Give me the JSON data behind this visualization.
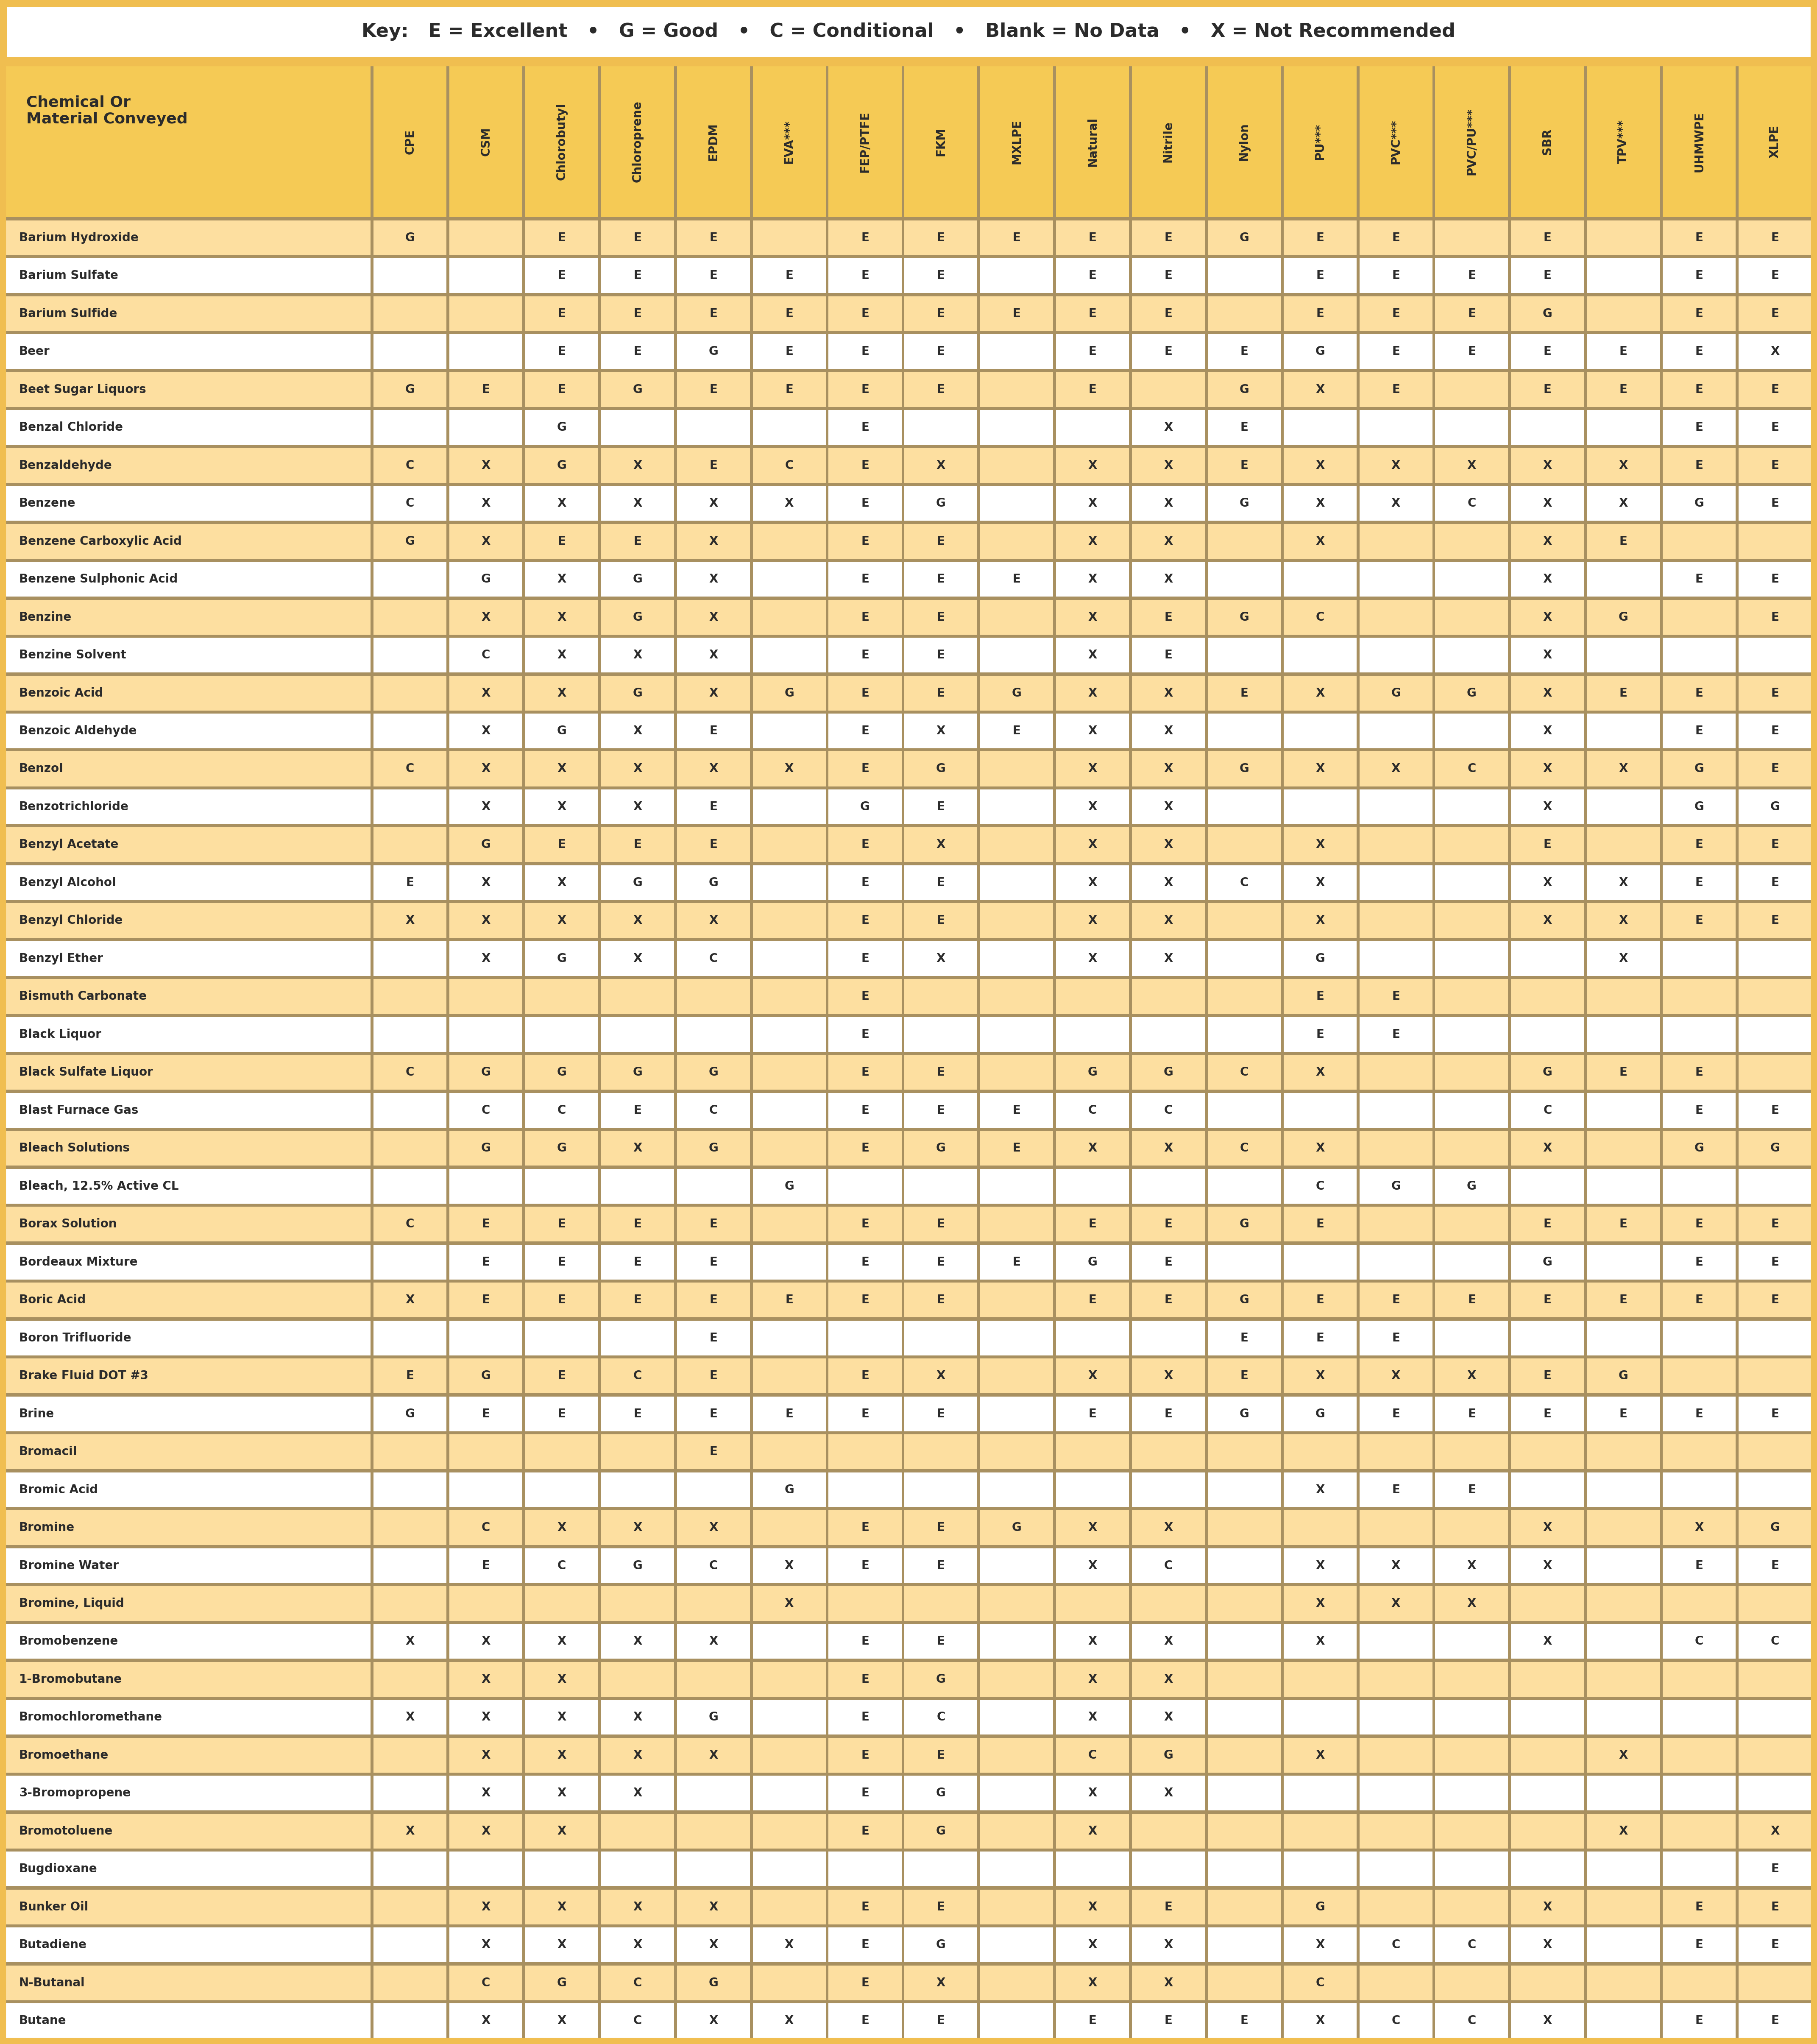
{
  "key_text": "Key:   E = Excellent   •   G = Good   •   C = Conditional   •   Blank = No Data   •   X = Not Recommended",
  "header_col": "Chemical Or\nMaterial Conveyed",
  "columns": [
    "CPE",
    "CSM",
    "Chlorobutyl",
    "Chloroprene",
    "EPDM",
    "EVA***",
    "FEP/PTFE",
    "FKM",
    "MXLPE",
    "Natural",
    "Nitrile",
    "Nylon",
    "PU***",
    "PVC***",
    "PVC/PU***",
    "SBR",
    "TPV***",
    "UHMWPE",
    "XLPE"
  ],
  "rows": [
    [
      "Barium Hydroxide",
      "G",
      "",
      "E",
      "E",
      "E",
      "",
      "E",
      "E",
      "E",
      "E",
      "E",
      "G",
      "E",
      "E",
      "",
      "E",
      "",
      "E",
      "E"
    ],
    [
      "Barium Sulfate",
      "",
      "",
      "E",
      "E",
      "E",
      "E",
      "E",
      "E",
      "",
      "E",
      "E",
      "",
      "E",
      "E",
      "E",
      "E",
      "",
      "E",
      "E"
    ],
    [
      "Barium Sulfide",
      "",
      "",
      "E",
      "E",
      "E",
      "E",
      "E",
      "E",
      "E",
      "E",
      "E",
      "",
      "E",
      "E",
      "E",
      "G",
      "",
      "E",
      "E"
    ],
    [
      "Beer",
      "",
      "",
      "E",
      "E",
      "G",
      "E",
      "E",
      "E",
      "",
      "E",
      "E",
      "E",
      "G",
      "E",
      "E",
      "E",
      "E",
      "E",
      "X"
    ],
    [
      "Beet Sugar Liquors",
      "G",
      "E",
      "E",
      "G",
      "E",
      "E",
      "E",
      "E",
      "",
      "E",
      "",
      "G",
      "X",
      "E",
      "",
      "E",
      "E",
      "E",
      "E"
    ],
    [
      "Benzal Chloride",
      "",
      "",
      "G",
      "",
      "",
      "",
      "E",
      "",
      "",
      "",
      "X",
      "E",
      "",
      "",
      "",
      "",
      "",
      "E",
      "E"
    ],
    [
      "Benzaldehyde",
      "C",
      "X",
      "G",
      "X",
      "E",
      "C",
      "E",
      "X",
      "",
      "X",
      "X",
      "E",
      "X",
      "X",
      "X",
      "X",
      "X",
      "E",
      "E"
    ],
    [
      "Benzene",
      "C",
      "X",
      "X",
      "X",
      "X",
      "X",
      "E",
      "G",
      "",
      "X",
      "X",
      "G",
      "X",
      "X",
      "C",
      "X",
      "X",
      "G",
      "E"
    ],
    [
      "Benzene Carboxylic Acid",
      "G",
      "X",
      "E",
      "E",
      "X",
      "",
      "E",
      "E",
      "",
      "X",
      "X",
      "",
      "X",
      "",
      "",
      "X",
      "E",
      "",
      ""
    ],
    [
      "Benzene Sulphonic Acid",
      "",
      "G",
      "X",
      "G",
      "X",
      "",
      "E",
      "E",
      "E",
      "X",
      "X",
      "",
      "",
      "",
      "",
      "X",
      "",
      "E",
      "E"
    ],
    [
      "Benzine",
      "",
      "X",
      "X",
      "G",
      "X",
      "",
      "E",
      "E",
      "",
      "X",
      "E",
      "G",
      "C",
      "",
      "",
      "X",
      "G",
      "",
      "E"
    ],
    [
      "Benzine Solvent",
      "",
      "C",
      "X",
      "X",
      "X",
      "",
      "E",
      "E",
      "",
      "X",
      "E",
      "",
      "",
      "",
      "",
      "X",
      "",
      "",
      ""
    ],
    [
      "Benzoic Acid",
      "",
      "X",
      "X",
      "G",
      "X",
      "G",
      "E",
      "E",
      "G",
      "X",
      "X",
      "E",
      "X",
      "G",
      "G",
      "X",
      "E",
      "E",
      "E"
    ],
    [
      "Benzoic Aldehyde",
      "",
      "X",
      "G",
      "X",
      "E",
      "",
      "E",
      "X",
      "E",
      "X",
      "X",
      "",
      "",
      "",
      "",
      "X",
      "",
      "E",
      "E"
    ],
    [
      "Benzol",
      "C",
      "X",
      "X",
      "X",
      "X",
      "X",
      "E",
      "G",
      "",
      "X",
      "X",
      "G",
      "X",
      "X",
      "C",
      "X",
      "X",
      "G",
      "E"
    ],
    [
      "Benzotrichloride",
      "",
      "X",
      "X",
      "X",
      "E",
      "",
      "G",
      "E",
      "",
      "X",
      "X",
      "",
      "",
      "",
      "",
      "X",
      "",
      "G",
      "G"
    ],
    [
      "Benzyl Acetate",
      "",
      "G",
      "E",
      "E",
      "E",
      "",
      "E",
      "X",
      "",
      "X",
      "X",
      "",
      "X",
      "",
      "",
      "E",
      "",
      "E",
      "E"
    ],
    [
      "Benzyl Alcohol",
      "E",
      "X",
      "X",
      "G",
      "G",
      "",
      "E",
      "E",
      "",
      "X",
      "X",
      "C",
      "X",
      "",
      "",
      "X",
      "X",
      "E",
      "E"
    ],
    [
      "Benzyl Chloride",
      "X",
      "X",
      "X",
      "X",
      "X",
      "",
      "E",
      "E",
      "",
      "X",
      "X",
      "",
      "X",
      "",
      "",
      "X",
      "X",
      "E",
      "E"
    ],
    [
      "Benzyl Ether",
      "",
      "X",
      "G",
      "X",
      "C",
      "",
      "E",
      "X",
      "",
      "X",
      "X",
      "",
      "G",
      "",
      "",
      "",
      "X",
      "",
      ""
    ],
    [
      "Bismuth Carbonate",
      "",
      "",
      "",
      "",
      "",
      "",
      "E",
      "",
      "",
      "",
      "",
      "",
      "E",
      "E",
      "",
      "",
      "",
      "",
      ""
    ],
    [
      "Black Liquor",
      "",
      "",
      "",
      "",
      "",
      "",
      "E",
      "",
      "",
      "",
      "",
      "",
      "E",
      "E",
      "",
      "",
      "",
      "",
      ""
    ],
    [
      "Black Sulfate Liquor",
      "C",
      "G",
      "G",
      "G",
      "G",
      "",
      "E",
      "E",
      "",
      "G",
      "G",
      "C",
      "X",
      "",
      "",
      "G",
      "E",
      "E",
      ""
    ],
    [
      "Blast Furnace Gas",
      "",
      "C",
      "C",
      "E",
      "C",
      "",
      "E",
      "E",
      "E",
      "C",
      "C",
      "",
      "",
      "",
      "",
      "C",
      "",
      "E",
      "E"
    ],
    [
      "Bleach Solutions",
      "",
      "G",
      "G",
      "X",
      "G",
      "",
      "E",
      "G",
      "E",
      "X",
      "X",
      "C",
      "X",
      "",
      "",
      "X",
      "",
      "G",
      "G"
    ],
    [
      "Bleach, 12.5% Active CL",
      "",
      "",
      "",
      "",
      "",
      "G",
      "",
      "",
      "",
      "",
      "",
      "",
      "C",
      "G",
      "G",
      "",
      "",
      "",
      ""
    ],
    [
      "Borax Solution",
      "C",
      "E",
      "E",
      "E",
      "E",
      "",
      "E",
      "E",
      "",
      "E",
      "E",
      "G",
      "E",
      "",
      "",
      "E",
      "E",
      "E",
      "E"
    ],
    [
      "Bordeaux Mixture",
      "",
      "E",
      "E",
      "E",
      "E",
      "",
      "E",
      "E",
      "E",
      "G",
      "E",
      "",
      "",
      "",
      "",
      "G",
      "",
      "E",
      "E"
    ],
    [
      "Boric Acid",
      "X",
      "E",
      "E",
      "E",
      "E",
      "E",
      "E",
      "E",
      "",
      "E",
      "E",
      "G",
      "E",
      "E",
      "E",
      "E",
      "E",
      "E",
      "E"
    ],
    [
      "Boron Trifluoride",
      "",
      "",
      "",
      "",
      "E",
      "",
      "",
      "",
      "",
      "",
      "",
      "E",
      "E",
      "E",
      "",
      "",
      "",
      "",
      ""
    ],
    [
      "Brake Fluid DOT #3",
      "E",
      "G",
      "E",
      "C",
      "E",
      "",
      "E",
      "X",
      "",
      "X",
      "X",
      "E",
      "X",
      "X",
      "X",
      "E",
      "G",
      "",
      ""
    ],
    [
      "Brine",
      "G",
      "E",
      "E",
      "E",
      "E",
      "E",
      "E",
      "E",
      "",
      "E",
      "E",
      "G",
      "G",
      "E",
      "E",
      "E",
      "E",
      "E",
      "E"
    ],
    [
      "Bromacil",
      "",
      "",
      "",
      "",
      "E",
      "",
      "",
      "",
      "",
      "",
      "",
      "",
      "",
      "",
      "",
      "",
      "",
      "",
      ""
    ],
    [
      "Bromic Acid",
      "",
      "",
      "",
      "",
      "",
      "G",
      "",
      "",
      "",
      "",
      "",
      "",
      "X",
      "E",
      "E",
      "",
      "",
      "",
      ""
    ],
    [
      "Bromine",
      "",
      "C",
      "X",
      "X",
      "X",
      "",
      "E",
      "E",
      "G",
      "X",
      "X",
      "",
      "",
      "",
      "",
      "X",
      "",
      "X",
      "G"
    ],
    [
      "Bromine Water",
      "",
      "E",
      "C",
      "G",
      "C",
      "X",
      "E",
      "E",
      "",
      "X",
      "C",
      "",
      "X",
      "X",
      "X",
      "X",
      "",
      "E",
      "E"
    ],
    [
      "Bromine, Liquid",
      "",
      "",
      "",
      "",
      "",
      "X",
      "",
      "",
      "",
      "",
      "",
      "",
      "X",
      "X",
      "X",
      "",
      "",
      "",
      ""
    ],
    [
      "Bromobenzene",
      "X",
      "X",
      "X",
      "X",
      "X",
      "",
      "E",
      "E",
      "",
      "X",
      "X",
      "",
      "X",
      "",
      "",
      "X",
      "",
      "C",
      "C"
    ],
    [
      "1-Bromobutane",
      "",
      "X",
      "X",
      "",
      "",
      "",
      "E",
      "G",
      "",
      "X",
      "X",
      "",
      "",
      "",
      "",
      "",
      "",
      "",
      ""
    ],
    [
      "Bromochloromethane",
      "X",
      "X",
      "X",
      "X",
      "G",
      "",
      "E",
      "C",
      "",
      "X",
      "X",
      "",
      "",
      "",
      "",
      "",
      "",
      "",
      ""
    ],
    [
      "Bromoethane",
      "",
      "X",
      "X",
      "X",
      "X",
      "",
      "E",
      "E",
      "",
      "C",
      "G",
      "",
      "X",
      "",
      "",
      "",
      "X",
      "",
      ""
    ],
    [
      "3-Bromopropene",
      "",
      "X",
      "X",
      "X",
      "",
      "",
      "E",
      "G",
      "",
      "X",
      "X",
      "",
      "",
      "",
      "",
      "",
      "",
      "",
      ""
    ],
    [
      "Bromotoluene",
      "X",
      "X",
      "X",
      "",
      "",
      "",
      "E",
      "G",
      "",
      "X",
      "",
      "",
      "",
      "",
      "",
      "",
      "X",
      "",
      "X"
    ],
    [
      "Bugdioxane",
      "",
      "",
      "",
      "",
      "",
      "",
      "",
      "",
      "",
      "",
      "",
      "",
      "",
      "",
      "",
      "",
      "",
      "",
      "E"
    ],
    [
      "Bunker Oil",
      "",
      "X",
      "X",
      "X",
      "X",
      "",
      "E",
      "E",
      "",
      "X",
      "E",
      "",
      "G",
      "",
      "",
      "X",
      "",
      "E",
      "E"
    ],
    [
      "Butadiene",
      "",
      "X",
      "X",
      "X",
      "X",
      "X",
      "E",
      "G",
      "",
      "X",
      "X",
      "",
      "X",
      "C",
      "C",
      "X",
      "",
      "E",
      "E"
    ],
    [
      "N-Butanal",
      "",
      "C",
      "G",
      "C",
      "G",
      "",
      "E",
      "X",
      "",
      "X",
      "X",
      "",
      "C",
      "",
      "",
      "",
      "",
      "",
      ""
    ],
    [
      "Butane",
      "",
      "X",
      "X",
      "C",
      "X",
      "X",
      "E",
      "E",
      "",
      "E",
      "E",
      "E",
      "X",
      "C",
      "C",
      "X",
      "",
      "E",
      "E"
    ]
  ],
  "colors": {
    "key_bg": "#FFFFFF",
    "key_border_outer": "#F0BE50",
    "header_bg": "#F5CA55",
    "odd_row_bg": "#FDDFA0",
    "even_row_bg": "#FFFFFF",
    "text_color": "#2B2B2B",
    "border_color": "#A89060",
    "grid_color": "#B8A070",
    "outer_border": "#F0BE50"
  }
}
